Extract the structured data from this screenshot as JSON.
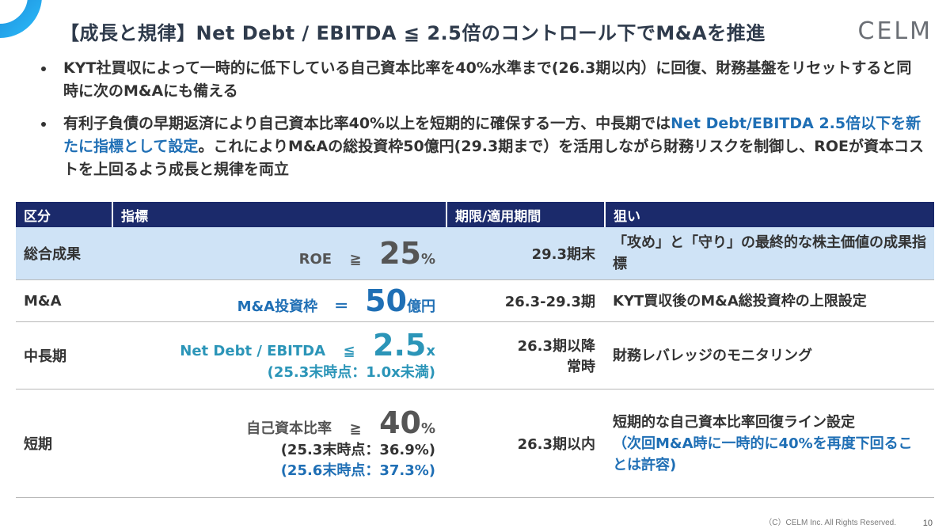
{
  "header": {
    "title": "【成長と規律】Net Debt / EBITDA ≦ 2.5倍のコントロール下でM&Aを推進",
    "logo": "CELM"
  },
  "bullets": [
    {
      "parts": [
        "KYT社買収によって一時的に低下している自己資本比率を40%水準まで(26.3期以内）に回復、財務基盤をリセットすると同時に次のM&Aにも備える"
      ]
    },
    {
      "parts": [
        "有利子負債の早期返済により自己資本比率40%以上を短期的に確保する一方、中長期では",
        "Net Debt/EBITDA 2.5倍以下を新たに指標として設定",
        "。これによりM&Aの総投資枠50億円(29.3期まで）を活用しながら財務リスクを制御し、ROEが資本コストを上回るよう成長と規律を両立"
      ]
    }
  ],
  "table": {
    "headers": [
      "区分",
      "指標",
      "期限/適用期間",
      "狙い"
    ],
    "rows": [
      {
        "category": "総合成果",
        "metric_label": "ROE",
        "operator": "≧",
        "value": "25",
        "unit": "%",
        "notes": [],
        "period": [
          "29.3期末"
        ],
        "aim": [
          "「攻め」と「守り」の最終的な株主価値の成果指標"
        ]
      },
      {
        "category": "M&A",
        "metric_label": "M&A投資枠",
        "operator": "＝",
        "value": "50",
        "unit": "億円",
        "notes": [],
        "period": [
          "26.3-29.3期"
        ],
        "aim": [
          "KYT買収後のM&A総投資枠の上限設定"
        ]
      },
      {
        "category": "中長期",
        "metric_label": "Net Debt / EBITDA",
        "operator": "≦",
        "value": "2.5",
        "unit": "x",
        "notes": [
          "(25.3末時点：1.0x未満)"
        ],
        "period": [
          "26.3期以降",
          "常時"
        ],
        "aim": [
          "財務レバレッジのモニタリング"
        ]
      },
      {
        "category": "短期",
        "metric_label": "自己資本比率",
        "operator": "≧",
        "value": "40",
        "unit": "%",
        "notes": [
          "(25.3末時点：36.9%)",
          "(25.6末時点：37.3%)"
        ],
        "period": [
          "26.3期以内"
        ],
        "aim": [
          "短期的な自己資本比率回復ライン設定",
          "（次回M&A時に一時的に40%を再度下回ることは許容)"
        ]
      }
    ]
  },
  "footer": {
    "copyright": "（C）CELM Inc. All Rights Reserved.",
    "page": "10"
  },
  "colors": {
    "header_bg": "#1b2a6b",
    "highlight_row": "#cfe3f6",
    "accent_blue": "#1f6fb5",
    "accent_teal": "#2b95b8"
  }
}
